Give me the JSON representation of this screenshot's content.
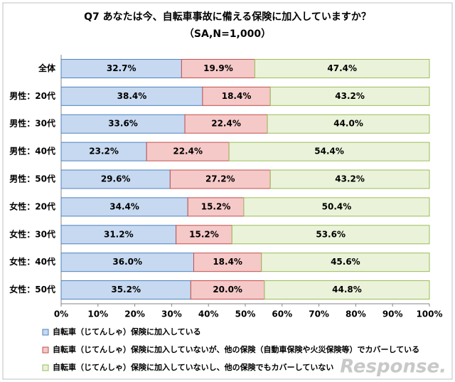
{
  "chart_data": {
    "type": "stacked-bar-horizontal",
    "title": "Q7 あなたは今、自転車事故に備える保険に加入していますか？",
    "subtitle": "（SA,N=1,000）",
    "categories": [
      "全体",
      "男性：20代",
      "男性：30代",
      "男性：40代",
      "男性：50代",
      "女性：20代",
      "女性：30代",
      "女性：40代",
      "女性：50代"
    ],
    "series": [
      {
        "name": "自転車（じてんしゃ）保険に加入している",
        "color": "#c6d9f1",
        "border": "#4f81bd",
        "values": [
          32.7,
          38.4,
          33.6,
          23.2,
          29.6,
          34.4,
          31.2,
          36.0,
          35.2
        ],
        "value_labels": [
          "32.7%",
          "38.4%",
          "33.6%",
          "23.2%",
          "29.6%",
          "34.4%",
          "31.2%",
          "36.0%",
          "35.2%"
        ]
      },
      {
        "name": "自転車（じてんしゃ）保険に加入していないが、他の保険（自動車保険や火災保険等）でカバーしている",
        "color": "#f5c9c8",
        "border": "#c0504d",
        "values": [
          19.9,
          18.4,
          22.4,
          22.4,
          27.2,
          15.2,
          15.2,
          18.4,
          20.0
        ],
        "value_labels": [
          "19.9%",
          "18.4%",
          "22.4%",
          "22.4%",
          "27.2%",
          "15.2%",
          "15.2%",
          "18.4%",
          "20.0%"
        ]
      },
      {
        "name": "自転車（じてんしゃ）保険に加入していないし、他の保険でもカバーしていない",
        "color": "#eaf3d9",
        "border": "#9bbb59",
        "values": [
          47.4,
          43.2,
          44.0,
          54.4,
          43.2,
          50.4,
          53.6,
          45.6,
          44.8
        ],
        "value_labels": [
          "47.4%",
          "43.2%",
          "44.0%",
          "54.4%",
          "43.2%",
          "50.4%",
          "53.6%",
          "45.6%",
          "44.8%"
        ]
      }
    ],
    "xlim": [
      0,
      100
    ],
    "xticks": [
      {
        "value": 0,
        "label": "0%"
      },
      {
        "value": 10,
        "label": "10%"
      },
      {
        "value": 20,
        "label": "20%"
      },
      {
        "value": 30,
        "label": "30%"
      },
      {
        "value": 40,
        "label": "40%"
      },
      {
        "value": 50,
        "label": "50%"
      },
      {
        "value": 60,
        "label": "60%"
      },
      {
        "value": 70,
        "label": "70%"
      },
      {
        "value": 80,
        "label": "80%"
      },
      {
        "value": 90,
        "label": "90%"
      },
      {
        "value": 100,
        "label": "100%"
      }
    ],
    "grid": false,
    "watermark": "Response."
  }
}
